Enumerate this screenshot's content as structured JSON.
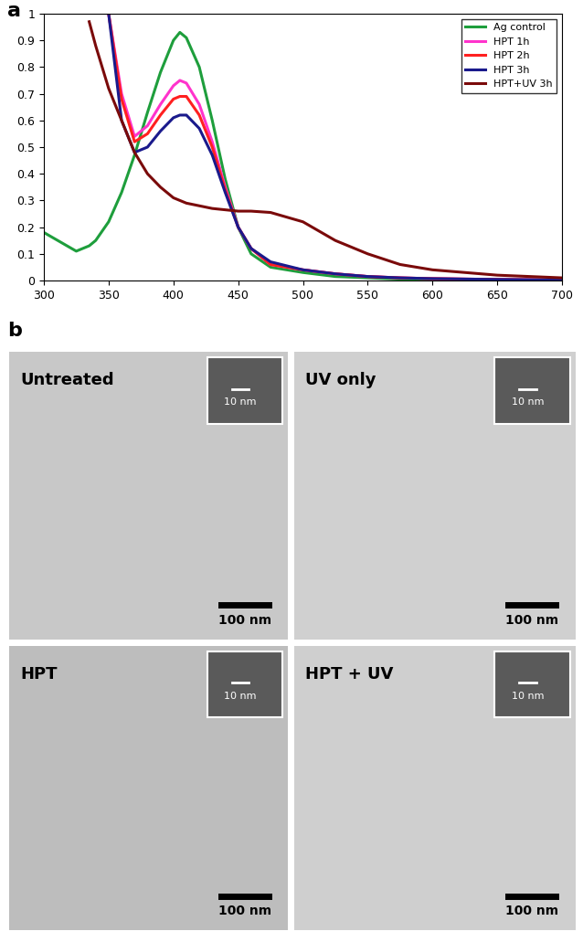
{
  "panel_labels": [
    "a",
    "b"
  ],
  "chart_data": {
    "type": "line",
    "x": [
      300,
      325,
      335,
      340,
      350,
      360,
      370,
      380,
      390,
      400,
      405,
      410,
      420,
      430,
      440,
      450,
      460,
      475,
      500,
      525,
      550,
      575,
      600,
      650,
      700
    ],
    "series": [
      {
        "name": "Ag control",
        "color": "#1e9e3c",
        "values": [
          0.18,
          0.11,
          0.13,
          0.15,
          0.22,
          0.33,
          0.47,
          0.63,
          0.78,
          0.9,
          0.93,
          0.91,
          0.8,
          0.6,
          0.38,
          0.2,
          0.1,
          0.05,
          0.03,
          0.015,
          0.01,
          0.005,
          0.003,
          0.002,
          0.0
        ]
      },
      {
        "name": "HPT 1h",
        "color": "#ff33cc",
        "values": [
          null,
          null,
          null,
          null,
          1.0,
          0.7,
          0.54,
          0.58,
          0.66,
          0.73,
          0.75,
          0.74,
          0.66,
          0.52,
          0.35,
          0.2,
          0.12,
          0.06,
          0.04,
          0.025,
          0.015,
          0.01,
          0.007,
          0.004,
          0.002
        ]
      },
      {
        "name": "HPT 2h",
        "color": "#ff2020",
        "values": [
          null,
          null,
          null,
          null,
          1.0,
          0.68,
          0.52,
          0.55,
          0.62,
          0.68,
          0.69,
          0.69,
          0.62,
          0.5,
          0.34,
          0.2,
          0.12,
          0.06,
          0.04,
          0.025,
          0.015,
          0.01,
          0.007,
          0.004,
          0.002
        ]
      },
      {
        "name": "HPT 3h",
        "color": "#1a1a8c",
        "values": [
          null,
          null,
          null,
          null,
          1.0,
          0.6,
          0.48,
          0.5,
          0.56,
          0.61,
          0.62,
          0.62,
          0.57,
          0.47,
          0.33,
          0.2,
          0.12,
          0.07,
          0.04,
          0.025,
          0.015,
          0.01,
          0.007,
          0.004,
          0.002
        ]
      },
      {
        "name": "HPT+UV 3h",
        "color": "#7a0a0a",
        "values": [
          null,
          null,
          0.97,
          0.88,
          0.72,
          0.6,
          0.48,
          0.4,
          0.35,
          0.31,
          0.3,
          0.29,
          0.28,
          0.27,
          0.265,
          0.26,
          0.26,
          0.255,
          0.22,
          0.15,
          0.1,
          0.06,
          0.04,
          0.02,
          0.01
        ]
      }
    ],
    "xlim": [
      300,
      700
    ],
    "xticks": [
      300,
      350,
      400,
      450,
      500,
      550,
      600,
      650,
      700
    ],
    "ylim": [
      0,
      1
    ],
    "yticks": [
      0,
      0.1,
      0.2,
      0.3,
      0.4,
      0.5,
      0.6,
      0.7,
      0.8,
      0.9,
      1
    ],
    "grid": false,
    "legend": "upper right"
  },
  "images": [
    {
      "title": "Untreated",
      "scale_bar": "100 nm",
      "inset_scale_bar": "10 nm"
    },
    {
      "title": "UV only",
      "scale_bar": "100 nm",
      "inset_scale_bar": "10 nm"
    },
    {
      "title": "HPT",
      "scale_bar": "100 nm",
      "inset_scale_bar": "10 nm"
    },
    {
      "title": "HPT + UV",
      "scale_bar": "100 nm",
      "inset_scale_bar": "10 nm"
    }
  ]
}
